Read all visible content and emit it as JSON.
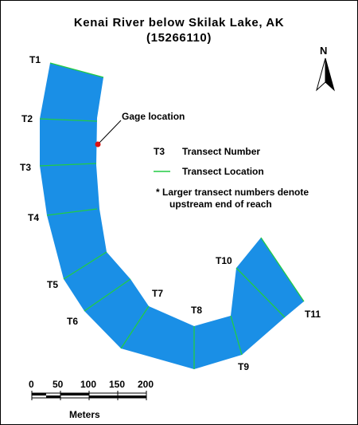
{
  "title_line1": "Kenai  River  below  Skilak  Lake,  AK",
  "title_line2": "(15266110)",
  "north_label": "N",
  "colors": {
    "water": "#1a8fe6",
    "transect": "#22cc44",
    "gage": "#dd1111"
  },
  "gage_label": "Gage  location",
  "transects": {
    "T1": "T1",
    "T2": "T2",
    "T3": "T3",
    "T4": "T4",
    "T5": "T5",
    "T6": "T6",
    "T7": "T7",
    "T8": "T8",
    "T9": "T9",
    "T10": "T10",
    "T11": "T11"
  },
  "legend": {
    "symbol_label": "T3",
    "symbol_desc": "Transect  Number",
    "line_desc": "Transect  Location",
    "note_line1": "*  Larger  transect  numbers  denote",
    "note_line2": "upstream  end  of  reach"
  },
  "scale": {
    "ticks": [
      "0",
      "50",
      "100",
      "150",
      "200"
    ],
    "unit": "Meters"
  }
}
